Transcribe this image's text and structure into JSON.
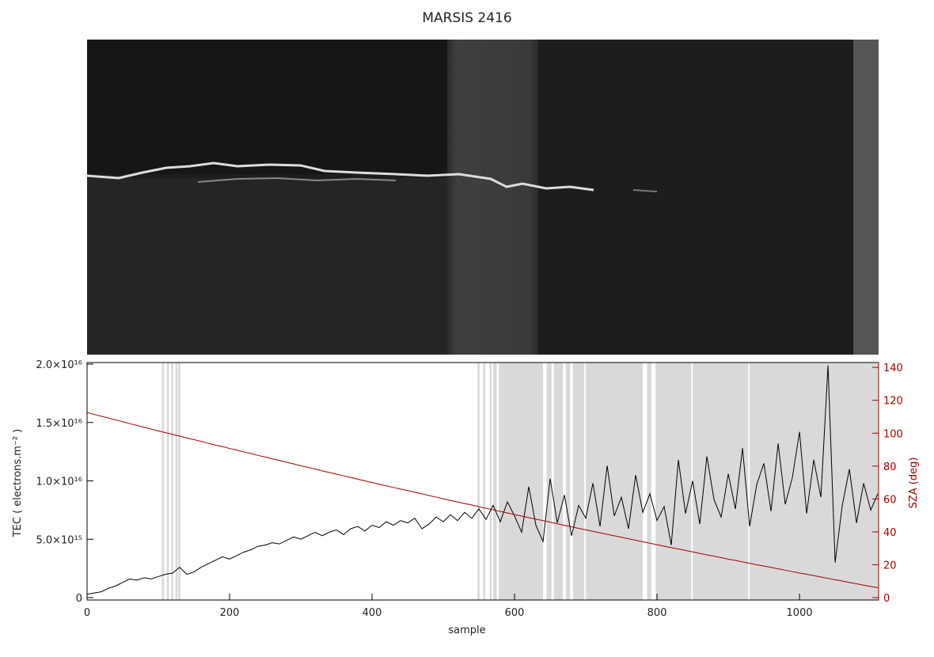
{
  "chart_data": {
    "type": "line",
    "title": "MARSIS 2416",
    "xlabel": "sample",
    "ylabel": "TEC ( electrons.m⁻² )",
    "y2label": "SZA (deg)",
    "x": [
      0,
      10,
      20,
      30,
      40,
      50,
      60,
      70,
      80,
      90,
      100,
      110,
      120,
      130,
      140,
      150,
      160,
      170,
      180,
      190,
      200,
      210,
      220,
      230,
      240,
      250,
      260,
      270,
      280,
      290,
      300,
      310,
      320,
      330,
      340,
      350,
      360,
      370,
      380,
      390,
      400,
      410,
      420,
      430,
      440,
      450,
      460,
      470,
      480,
      490,
      500,
      510,
      520,
      530,
      540,
      550,
      560,
      570,
      580,
      590,
      600,
      610,
      620,
      630,
      640,
      650,
      660,
      670,
      680,
      690,
      700,
      710,
      720,
      730,
      740,
      750,
      760,
      770,
      780,
      790,
      800,
      810,
      820,
      830,
      840,
      850,
      860,
      870,
      880,
      890,
      900,
      910,
      920,
      930,
      940,
      950,
      960,
      970,
      980,
      990,
      1000,
      1010,
      1020,
      1030,
      1040,
      1050,
      1060,
      1070,
      1080,
      1090,
      1100,
      1110
    ],
    "series": [
      {
        "name": "TEC",
        "color": "#000000",
        "axis": "y",
        "values": [
          300000000000000.0,
          400000000000000.0,
          500000000000000.0,
          800000000000000.0,
          1000000000000000.0,
          1300000000000000.0,
          1600000000000000.0,
          1500000000000000.0,
          1700000000000000.0,
          1600000000000000.0,
          1800000000000000.0,
          2000000000000000.0,
          2100000000000000.0,
          2600000000000000.0,
          2000000000000000.0,
          2200000000000000.0,
          2600000000000000.0,
          2900000000000000.0,
          3200000000000000.0,
          3500000000000000.0,
          3300000000000000.0,
          3600000000000000.0,
          3900000000000000.0,
          4100000000000000.0,
          4400000000000000.0,
          4500000000000000.0,
          4700000000000000.0,
          4600000000000000.0,
          4900000000000000.0,
          5200000000000000.0,
          5000000000000000.0,
          5300000000000000.0,
          5600000000000000.0,
          5300000000000000.0,
          5600000000000000.0,
          5800000000000000.0,
          5400000000000000.0,
          5900000000000000.0,
          6100000000000000.0,
          5700000000000000.0,
          6200000000000000.0,
          6000000000000000.0,
          6500000000000000.0,
          6200000000000000.0,
          6600000000000000.0,
          6400000000000000.0,
          6800000000000000.0,
          5900000000000000.0,
          6300000000000000.0,
          6900000000000000.0,
          6500000000000000.0,
          7100000000000000.0,
          6600000000000000.0,
          7300000000000000.0,
          6800000000000000.0,
          7600000000000000.0,
          6700000000000000.0,
          7900000000000000.0,
          6500000000000000.0,
          8200000000000000.0,
          7000000000000000.0,
          5600000000000000.0,
          9500000000000000.0,
          6200000000000000.0,
          4800000000000000.0,
          1.02e+16,
          6400000000000000.0,
          8800000000000000.0,
          5300000000000000.0,
          7900000000000000.0,
          6800000000000000.0,
          9800000000000000.0,
          6100000000000000.0,
          1.13e+16,
          7000000000000000.0,
          8600000000000000.0,
          5900000000000000.0,
          1.05e+16,
          7300000000000000.0,
          8900000000000000.0,
          6600000000000000.0,
          7800000000000000.0,
          4500000000000000.0,
          1.18e+16,
          7200000000000000.0,
          1e+16,
          6300000000000000.0,
          1.21e+16,
          8400000000000000.0,
          6900000000000000.0,
          1.06e+16,
          7600000000000000.0,
          1.28e+16,
          6100000000000000.0,
          9700000000000000.0,
          1.15e+16,
          7400000000000000.0,
          1.32e+16,
          8000000000000000.0,
          1.03e+16,
          1.42e+16,
          7200000000000000.0,
          1.18e+16,
          8600000000000000.0,
          1.99e+16,
          3000000000000000.0,
          7900000000000000.0,
          1.1e+16,
          6400000000000000.0,
          9800000000000000.0,
          7500000000000000.0,
          8900000000000000.0
        ]
      },
      {
        "name": "SZA",
        "color": "#a00000",
        "axis": "y2",
        "values": [
          112.5,
          111.4,
          110.3,
          109.2,
          108.1,
          107.0,
          105.8,
          104.7,
          103.6,
          102.5,
          101.4,
          100.3,
          99.3,
          98.2,
          97.1,
          96.1,
          95.0,
          93.9,
          92.8,
          91.8,
          90.7,
          89.7,
          88.6,
          87.6,
          86.5,
          85.5,
          84.4,
          83.4,
          82.3,
          81.3,
          80.2,
          79.2,
          78.2,
          77.1,
          76.1,
          75.1,
          74.1,
          73.1,
          72.0,
          71.0,
          70.0,
          69.0,
          68.0,
          67.0,
          66.0,
          65.1,
          64.1,
          63.1,
          62.1,
          61.1,
          60.1,
          59.1,
          58.2,
          57.2,
          56.3,
          55.3,
          54.3,
          53.4,
          52.4,
          51.5,
          50.5,
          49.6,
          48.6,
          47.7,
          46.8,
          45.9,
          44.9,
          44.0,
          43.1,
          42.1,
          41.2,
          40.3,
          39.4,
          38.5,
          37.6,
          36.7,
          35.8,
          34.9,
          34.0,
          33.1,
          32.2,
          31.3,
          30.4,
          29.6,
          28.7,
          27.8,
          26.9,
          26.0,
          25.2,
          24.3,
          23.4,
          22.6,
          21.7,
          20.9,
          20.0,
          19.2,
          18.4,
          17.5,
          16.7,
          15.8,
          15.0,
          14.2,
          13.4,
          12.5,
          11.7,
          10.9,
          10.1,
          9.2,
          8.4,
          7.6,
          6.8,
          6.0
        ]
      }
    ],
    "xlim": [
      0,
      1111
    ],
    "xticks": [
      0,
      200,
      400,
      600,
      800,
      1000
    ],
    "ylim": [
      0,
      2e+16
    ],
    "yticks": [
      0,
      {
        "value": 5000000000000000.0,
        "label": "5.0×10¹⁵"
      },
      {
        "value": 1e+16,
        "label": "1.0×10¹⁶"
      },
      {
        "value": 1.5e+16,
        "label": "1.5×10¹⁶"
      },
      {
        "value": 2e+16,
        "label": "2.0×10¹⁶"
      }
    ],
    "y2lim": [
      0,
      142
    ],
    "y2ticks": [
      0,
      20,
      40,
      60,
      80,
      100,
      120,
      140
    ],
    "y2color": "#a00000",
    "shaded_color": "#d9d9d9",
    "shaded_ranges": [
      [
        105,
        108
      ],
      [
        112,
        115
      ],
      [
        118,
        121
      ],
      [
        124,
        127
      ],
      [
        128,
        131
      ],
      [
        548,
        551
      ],
      [
        556,
        559
      ],
      [
        565,
        568
      ],
      [
        570,
        575
      ],
      [
        578,
        640
      ],
      [
        645,
        652
      ],
      [
        655,
        668
      ],
      [
        672,
        678
      ],
      [
        682,
        698
      ],
      [
        700,
        780
      ],
      [
        786,
        792
      ],
      [
        798,
        848
      ],
      [
        850,
        928
      ],
      [
        930,
        1111
      ]
    ]
  }
}
